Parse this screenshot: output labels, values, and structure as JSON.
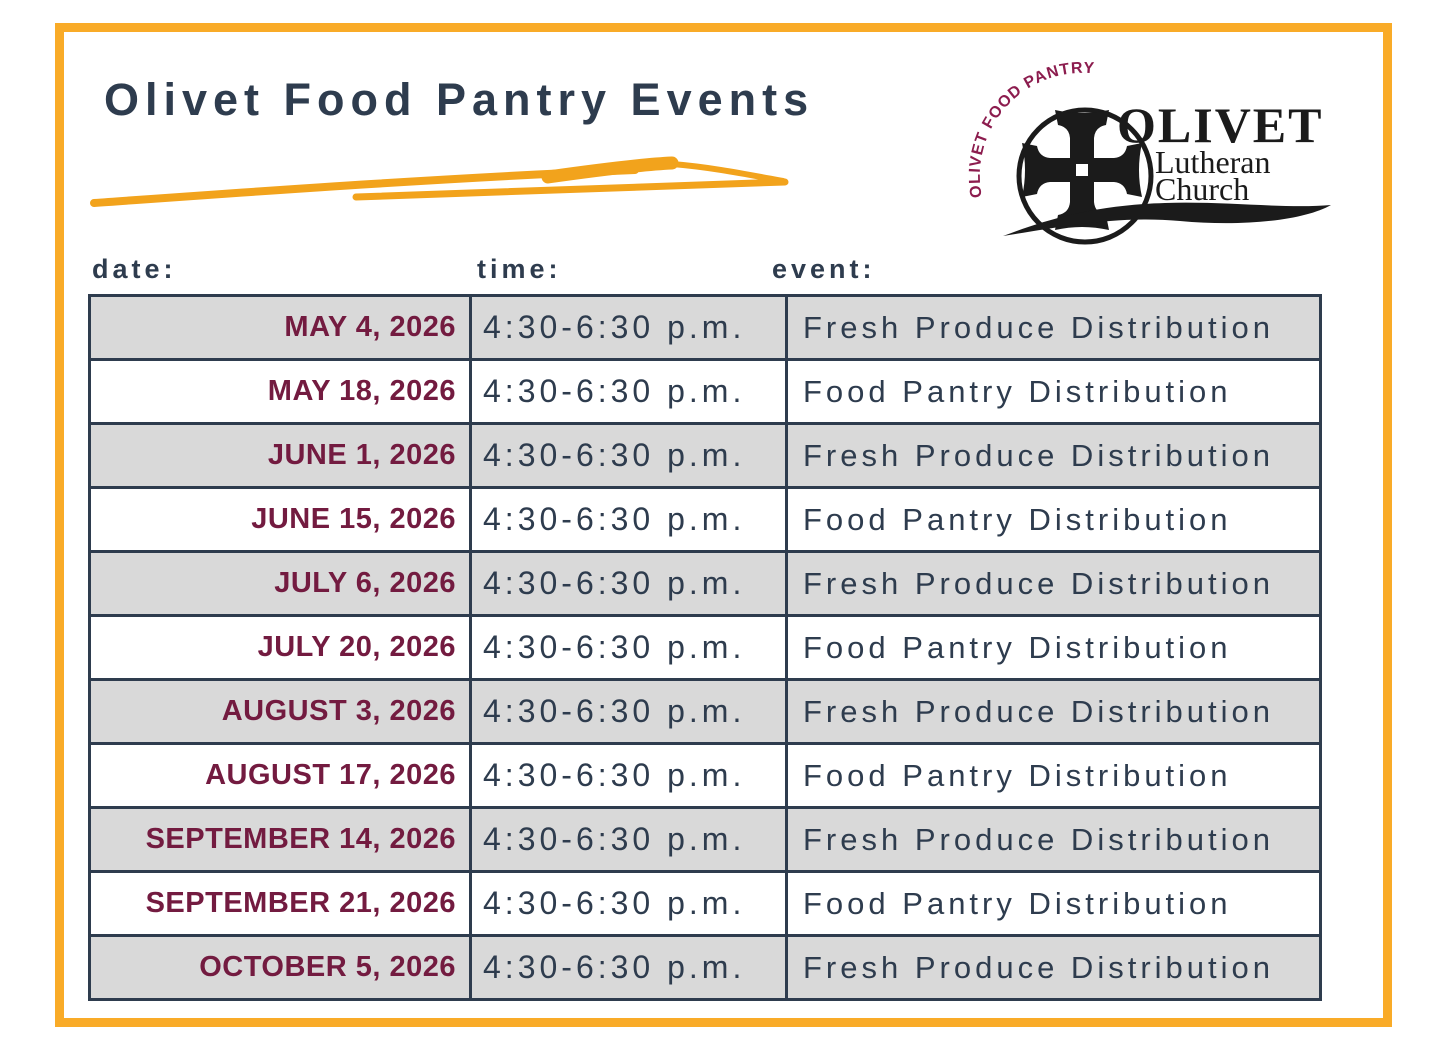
{
  "page": {
    "title": "Olivet Food Pantry Events",
    "colors": {
      "frame_orange": "#F9AB28",
      "swoosh_orange": "#F2A31C",
      "navy": "#2E3C4E",
      "maroon_date": "#731B40",
      "maroon_arc": "#8C1C4E",
      "row_gray": "#D9D9D9",
      "logo_black": "#1B1B1B"
    }
  },
  "logo": {
    "arc_text": "OLIVET FOOD PANTRY",
    "name": "OLIVET",
    "line1": "Lutheran",
    "line2": "Church"
  },
  "table": {
    "headers": {
      "date": "date:",
      "time": "time:",
      "event": "event:"
    },
    "rows": [
      {
        "date": "MAY 4, 2026",
        "time": "4:30-6:30 p.m.",
        "event": "Fresh Produce Distribution"
      },
      {
        "date": "MAY 18, 2026",
        "time": "4:30-6:30 p.m.",
        "event": "Food Pantry Distribution"
      },
      {
        "date": "JUNE 1, 2026",
        "time": "4:30-6:30 p.m.",
        "event": "Fresh Produce Distribution"
      },
      {
        "date": "JUNE 15, 2026",
        "time": "4:30-6:30 p.m.",
        "event": "Food Pantry Distribution"
      },
      {
        "date": "JULY 6, 2026",
        "time": "4:30-6:30 p.m.",
        "event": "Fresh Produce Distribution"
      },
      {
        "date": "JULY 20, 2026",
        "time": "4:30-6:30 p.m.",
        "event": "Food Pantry Distribution"
      },
      {
        "date": "AUGUST 3, 2026",
        "time": "4:30-6:30 p.m.",
        "event": "Fresh Produce Distribution"
      },
      {
        "date": "AUGUST 17, 2026",
        "time": "4:30-6:30 p.m.",
        "event": "Food Pantry Distribution"
      },
      {
        "date": "SEPTEMBER 14, 2026",
        "time": "4:30-6:30 p.m.",
        "event": "Fresh Produce Distribution"
      },
      {
        "date": "SEPTEMBER 21, 2026",
        "time": "4:30-6:30 p.m.",
        "event": "Food Pantry Distribution"
      },
      {
        "date": "OCTOBER 5, 2026",
        "time": "4:30-6:30 p.m.",
        "event": "Fresh Produce Distribution"
      }
    ]
  }
}
